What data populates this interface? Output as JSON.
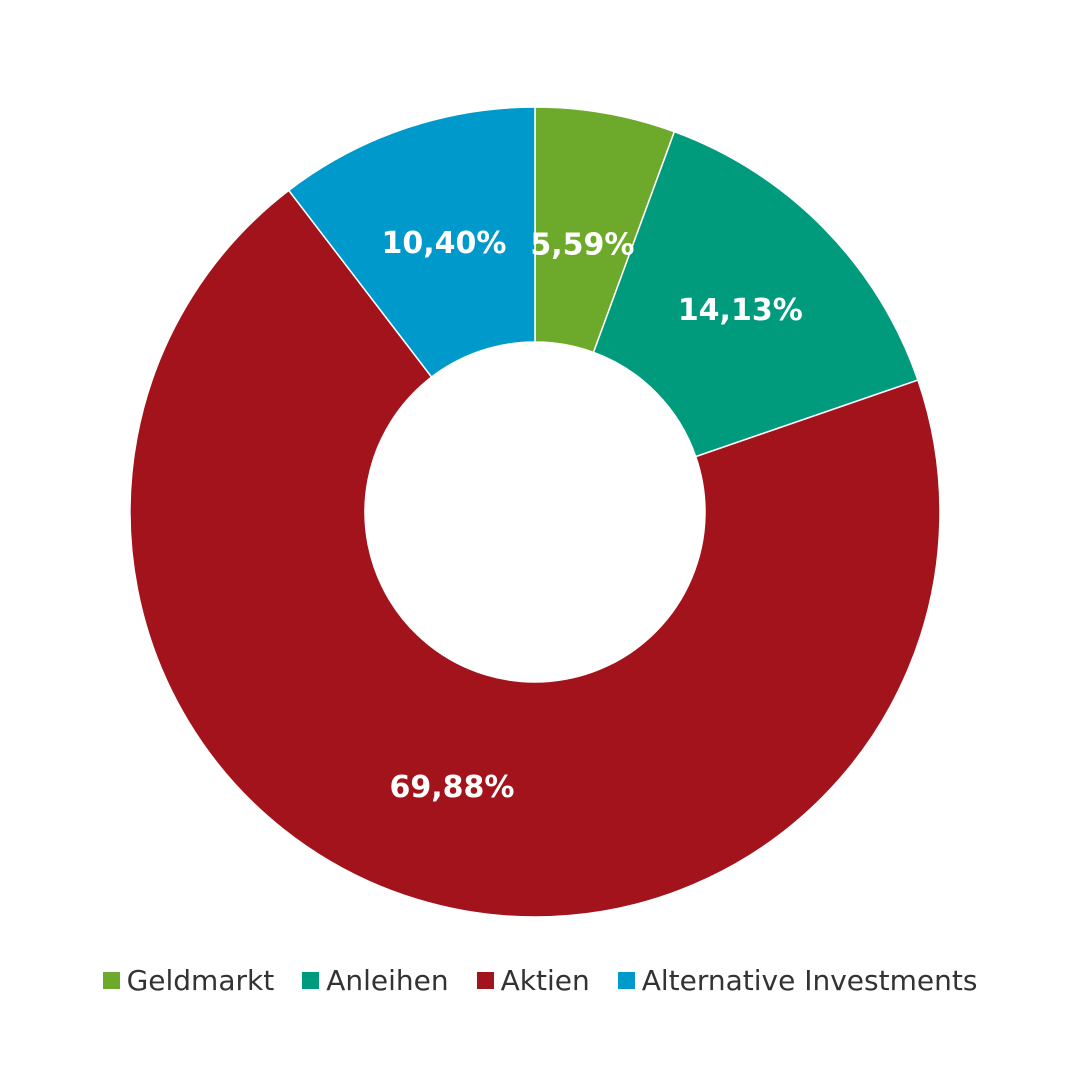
{
  "chart_data": {
    "type": "pie",
    "variant": "donut",
    "title": "",
    "legend_position": "bottom",
    "slices": [
      {
        "label": "Geldmarkt",
        "value": 5.59,
        "display": "5,59%",
        "color": "#6DAA2C"
      },
      {
        "label": "Anleihen",
        "value": 14.13,
        "display": "14,13%",
        "color": "#009B7D"
      },
      {
        "label": "Aktien",
        "value": 69.88,
        "display": "69,88%",
        "color": "#A3131C"
      },
      {
        "label": "Alternative Investments",
        "value": 10.4,
        "display": "10,40%",
        "color": "#0099CC"
      }
    ]
  }
}
